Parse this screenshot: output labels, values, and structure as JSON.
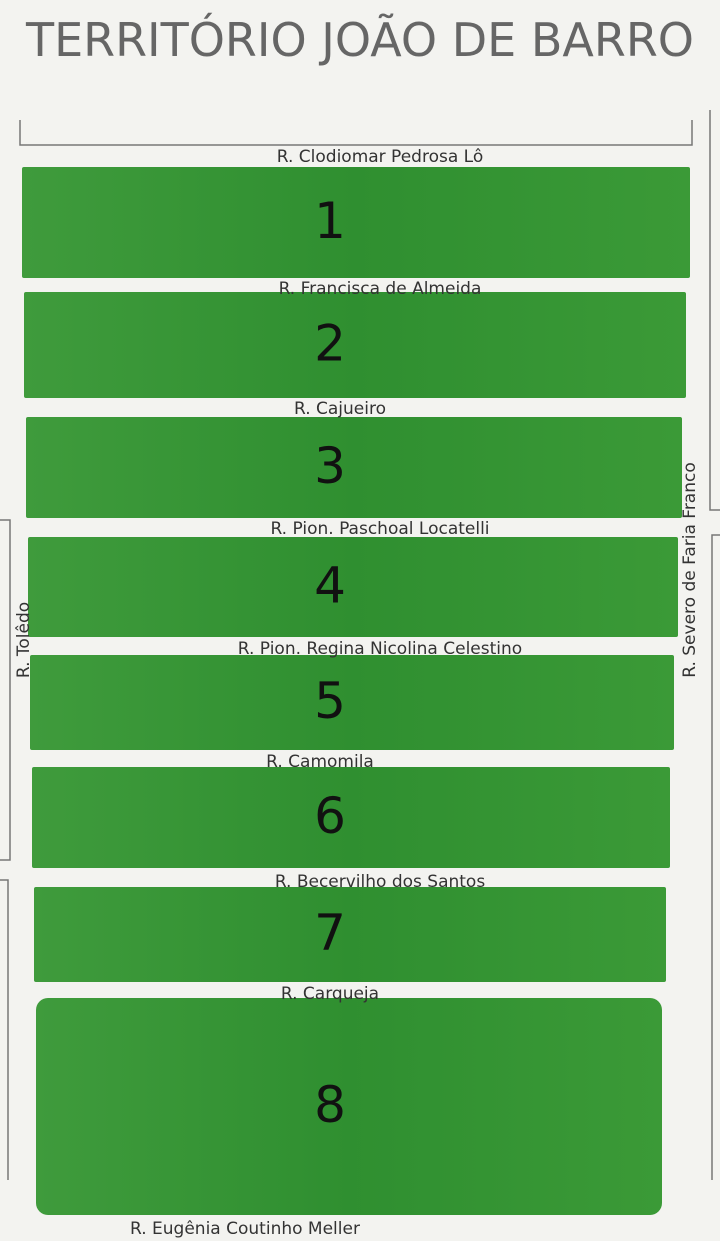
{
  "title": "TERRITÓRIO JOÃO DE BARRO",
  "streets": [
    "R. Clodiomar Pedrosa Lô",
    "R. Francisca de Almeida",
    "R. Cajueiro",
    "R. Pion. Paschoal Locatelli",
    "R. Pion. Regina Nicolina Celestino",
    "R. Camomila",
    "R. Becervilho dos Santos",
    "R. Carqueja",
    "R. Eugênia Coutinho Meller"
  ],
  "side_streets": {
    "left": "R. Tolêdo",
    "right": "R. Severo de Faria Franco"
  },
  "blocks": [
    "1",
    "2",
    "3",
    "4",
    "5",
    "6",
    "7",
    "8"
  ]
}
